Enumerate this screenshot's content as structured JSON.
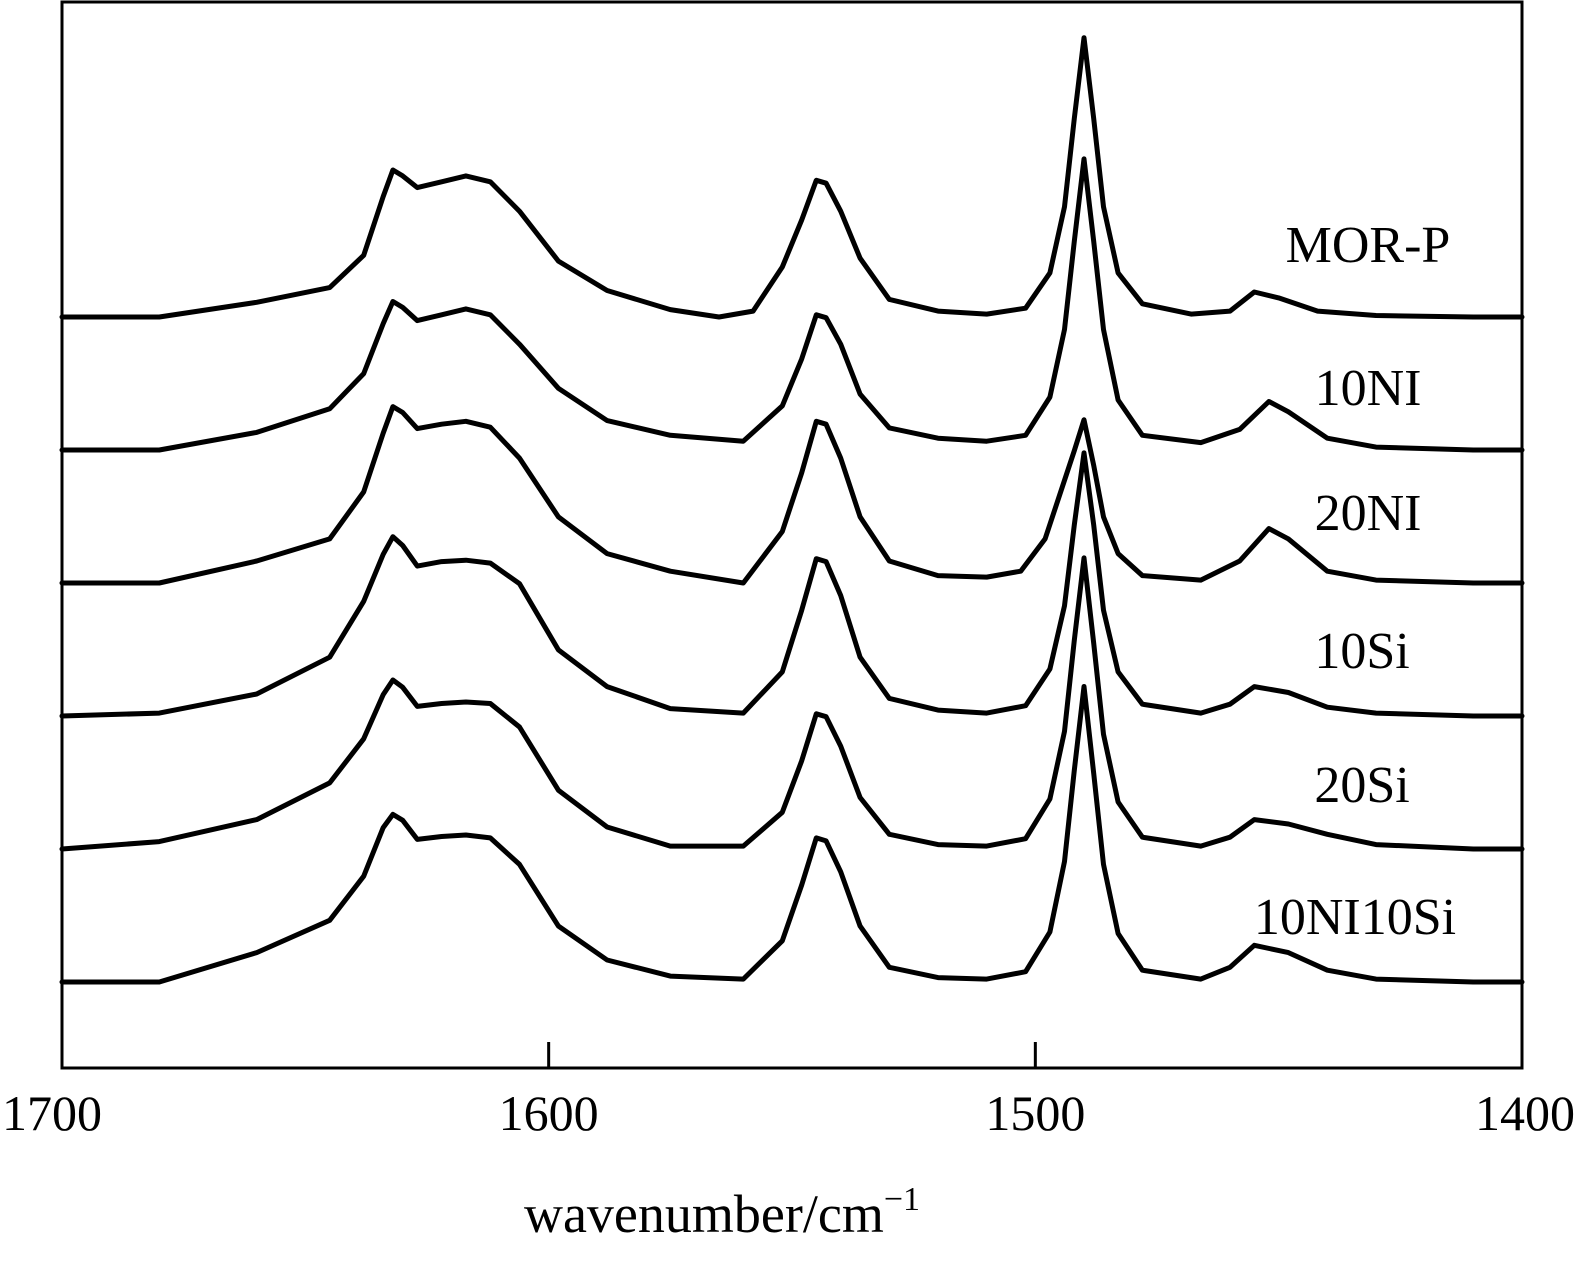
{
  "chart_data": {
    "type": "line",
    "xlabel": "wavenumber/cm",
    "xlabel_superscript": "−1",
    "xlim": [
      1700,
      1400
    ],
    "x_reversed": true,
    "xticks": [
      1700,
      1600,
      1500,
      1400
    ],
    "xtick_labels": [
      "1700",
      "1600",
      "1500",
      "1400"
    ],
    "grid": false,
    "legend": "labels above each trace on the right",
    "y_axis_labels": false,
    "series": [
      {
        "name": "MOR-P",
        "offset": 5,
        "peaks": {
          "1632": 1.0,
          "1617": 0.96,
          "1545": 0.93,
          "1490": 1.9,
          "1455": 0.17
        },
        "points": [
          [
            1700,
            0
          ],
          [
            1680,
            0
          ],
          [
            1660,
            0.1
          ],
          [
            1645,
            0.2
          ],
          [
            1638,
            0.42
          ],
          [
            1634,
            0.82
          ],
          [
            1632,
            1.0
          ],
          [
            1630,
            0.96
          ],
          [
            1627,
            0.88
          ],
          [
            1622,
            0.92
          ],
          [
            1617,
            0.96
          ],
          [
            1612,
            0.92
          ],
          [
            1606,
            0.72
          ],
          [
            1598,
            0.38
          ],
          [
            1588,
            0.18
          ],
          [
            1575,
            0.05
          ],
          [
            1565,
            0
          ],
          [
            1558,
            0.04
          ],
          [
            1552,
            0.34
          ],
          [
            1548,
            0.66
          ],
          [
            1545,
            0.93
          ],
          [
            1543,
            0.91
          ],
          [
            1540,
            0.72
          ],
          [
            1536,
            0.4
          ],
          [
            1530,
            0.12
          ],
          [
            1520,
            0.04
          ],
          [
            1510,
            0.02
          ],
          [
            1502,
            0.06
          ],
          [
            1497,
            0.3
          ],
          [
            1494,
            0.75
          ],
          [
            1492,
            1.35
          ],
          [
            1490,
            1.9
          ],
          [
            1488,
            1.35
          ],
          [
            1486,
            0.75
          ],
          [
            1483,
            0.3
          ],
          [
            1478,
            0.09
          ],
          [
            1468,
            0.02
          ],
          [
            1460,
            0.04
          ],
          [
            1455,
            0.17
          ],
          [
            1450,
            0.13
          ],
          [
            1442,
            0.04
          ],
          [
            1430,
            0.01
          ],
          [
            1410,
            0
          ],
          [
            1400,
            0
          ]
        ]
      },
      {
        "name": "10NI",
        "offset": 4,
        "peaks": {
          "1632": 1.01,
          "1617": 0.96,
          "1545": 0.92,
          "1490": 1.98,
          "1452": 0.33
        },
        "points": [
          [
            1700,
            0
          ],
          [
            1680,
            0
          ],
          [
            1660,
            0.12
          ],
          [
            1645,
            0.28
          ],
          [
            1638,
            0.52
          ],
          [
            1634,
            0.86
          ],
          [
            1632,
            1.01
          ],
          [
            1630,
            0.97
          ],
          [
            1627,
            0.88
          ],
          [
            1622,
            0.92
          ],
          [
            1617,
            0.96
          ],
          [
            1612,
            0.92
          ],
          [
            1606,
            0.72
          ],
          [
            1598,
            0.42
          ],
          [
            1588,
            0.2
          ],
          [
            1575,
            0.1
          ],
          [
            1560,
            0.06
          ],
          [
            1552,
            0.3
          ],
          [
            1548,
            0.62
          ],
          [
            1545,
            0.92
          ],
          [
            1543,
            0.9
          ],
          [
            1540,
            0.72
          ],
          [
            1536,
            0.38
          ],
          [
            1530,
            0.15
          ],
          [
            1520,
            0.08
          ],
          [
            1510,
            0.06
          ],
          [
            1502,
            0.1
          ],
          [
            1497,
            0.36
          ],
          [
            1494,
            0.82
          ],
          [
            1492,
            1.42
          ],
          [
            1490,
            1.98
          ],
          [
            1488,
            1.42
          ],
          [
            1486,
            0.82
          ],
          [
            1483,
            0.34
          ],
          [
            1478,
            0.1
          ],
          [
            1466,
            0.05
          ],
          [
            1458,
            0.14
          ],
          [
            1452,
            0.33
          ],
          [
            1448,
            0.26
          ],
          [
            1440,
            0.08
          ],
          [
            1430,
            0.02
          ],
          [
            1410,
            0
          ],
          [
            1400,
            0
          ]
        ]
      },
      {
        "name": "20NI",
        "offset": 3,
        "peaks": {
          "1632": 1.2,
          "1617": 1.1,
          "1545": 1.1,
          "1490": 1.11,
          "1452": 0.37
        },
        "points": [
          [
            1700,
            0
          ],
          [
            1680,
            0
          ],
          [
            1660,
            0.15
          ],
          [
            1645,
            0.3
          ],
          [
            1638,
            0.62
          ],
          [
            1634,
            1.02
          ],
          [
            1632,
            1.2
          ],
          [
            1630,
            1.16
          ],
          [
            1627,
            1.05
          ],
          [
            1622,
            1.08
          ],
          [
            1617,
            1.1
          ],
          [
            1612,
            1.06
          ],
          [
            1606,
            0.85
          ],
          [
            1598,
            0.45
          ],
          [
            1588,
            0.2
          ],
          [
            1575,
            0.08
          ],
          [
            1560,
            0
          ],
          [
            1552,
            0.35
          ],
          [
            1548,
            0.75
          ],
          [
            1545,
            1.1
          ],
          [
            1543,
            1.08
          ],
          [
            1540,
            0.85
          ],
          [
            1536,
            0.45
          ],
          [
            1530,
            0.15
          ],
          [
            1520,
            0.05
          ],
          [
            1510,
            0.04
          ],
          [
            1503,
            0.08
          ],
          [
            1498,
            0.3
          ],
          [
            1495,
            0.6
          ],
          [
            1492,
            0.9
          ],
          [
            1490,
            1.11
          ],
          [
            1488,
            0.8
          ],
          [
            1486,
            0.45
          ],
          [
            1483,
            0.2
          ],
          [
            1478,
            0.05
          ],
          [
            1466,
            0.02
          ],
          [
            1458,
            0.15
          ],
          [
            1452,
            0.37
          ],
          [
            1448,
            0.3
          ],
          [
            1440,
            0.08
          ],
          [
            1430,
            0.02
          ],
          [
            1410,
            0
          ],
          [
            1400,
            0
          ]
        ]
      },
      {
        "name": "10Si",
        "offset": 2,
        "peaks": {
          "1632": 1.22,
          "1617": 1.06,
          "1545": 1.07,
          "1490": 1.79,
          "1455": 0.2
        },
        "points": [
          [
            1700,
            0
          ],
          [
            1680,
            0.02
          ],
          [
            1660,
            0.15
          ],
          [
            1645,
            0.4
          ],
          [
            1638,
            0.78
          ],
          [
            1634,
            1.1
          ],
          [
            1632,
            1.22
          ],
          [
            1630,
            1.16
          ],
          [
            1627,
            1.02
          ],
          [
            1622,
            1.05
          ],
          [
            1617,
            1.06
          ],
          [
            1612,
            1.04
          ],
          [
            1606,
            0.9
          ],
          [
            1598,
            0.45
          ],
          [
            1588,
            0.2
          ],
          [
            1575,
            0.05
          ],
          [
            1560,
            0.02
          ],
          [
            1552,
            0.3
          ],
          [
            1548,
            0.72
          ],
          [
            1545,
            1.07
          ],
          [
            1543,
            1.05
          ],
          [
            1540,
            0.82
          ],
          [
            1536,
            0.4
          ],
          [
            1530,
            0.12
          ],
          [
            1520,
            0.04
          ],
          [
            1510,
            0.02
          ],
          [
            1502,
            0.07
          ],
          [
            1497,
            0.32
          ],
          [
            1494,
            0.75
          ],
          [
            1492,
            1.3
          ],
          [
            1490,
            1.79
          ],
          [
            1488,
            1.3
          ],
          [
            1486,
            0.72
          ],
          [
            1483,
            0.3
          ],
          [
            1478,
            0.08
          ],
          [
            1466,
            0.02
          ],
          [
            1460,
            0.08
          ],
          [
            1455,
            0.2
          ],
          [
            1448,
            0.16
          ],
          [
            1440,
            0.06
          ],
          [
            1430,
            0.02
          ],
          [
            1410,
            0
          ],
          [
            1400,
            0
          ]
        ]
      },
      {
        "name": "20Si",
        "offset": 1,
        "peaks": {
          "1632": 1.15,
          "1617": 1.0,
          "1545": 0.92,
          "1490": 1.98,
          "1455": 0.2
        },
        "points": [
          [
            1700,
            0
          ],
          [
            1680,
            0.05
          ],
          [
            1660,
            0.2
          ],
          [
            1645,
            0.45
          ],
          [
            1638,
            0.75
          ],
          [
            1634,
            1.05
          ],
          [
            1632,
            1.15
          ],
          [
            1630,
            1.1
          ],
          [
            1627,
            0.97
          ],
          [
            1622,
            0.99
          ],
          [
            1617,
            1.0
          ],
          [
            1612,
            0.99
          ],
          [
            1606,
            0.83
          ],
          [
            1598,
            0.4
          ],
          [
            1588,
            0.15
          ],
          [
            1575,
            0.02
          ],
          [
            1560,
            0.02
          ],
          [
            1552,
            0.25
          ],
          [
            1548,
            0.6
          ],
          [
            1545,
            0.92
          ],
          [
            1543,
            0.9
          ],
          [
            1540,
            0.7
          ],
          [
            1536,
            0.35
          ],
          [
            1530,
            0.1
          ],
          [
            1520,
            0.03
          ],
          [
            1510,
            0.02
          ],
          [
            1502,
            0.07
          ],
          [
            1497,
            0.34
          ],
          [
            1494,
            0.8
          ],
          [
            1492,
            1.42
          ],
          [
            1490,
            1.98
          ],
          [
            1488,
            1.4
          ],
          [
            1486,
            0.78
          ],
          [
            1483,
            0.32
          ],
          [
            1478,
            0.08
          ],
          [
            1466,
            0.02
          ],
          [
            1460,
            0.08
          ],
          [
            1455,
            0.2
          ],
          [
            1448,
            0.17
          ],
          [
            1440,
            0.1
          ],
          [
            1430,
            0.03
          ],
          [
            1410,
            0
          ],
          [
            1400,
            0
          ]
        ]
      },
      {
        "name": "10NI10Si",
        "offset": 0,
        "peaks": {
          "1632": 1.14,
          "1617": 1.0,
          "1545": 0.98,
          "1490": 2.01,
          "1455": 0.25
        },
        "points": [
          [
            1700,
            0
          ],
          [
            1680,
            0
          ],
          [
            1660,
            0.2
          ],
          [
            1645,
            0.42
          ],
          [
            1638,
            0.72
          ],
          [
            1634,
            1.05
          ],
          [
            1632,
            1.14
          ],
          [
            1630,
            1.1
          ],
          [
            1627,
            0.97
          ],
          [
            1622,
            0.99
          ],
          [
            1617,
            1.0
          ],
          [
            1612,
            0.98
          ],
          [
            1606,
            0.8
          ],
          [
            1598,
            0.38
          ],
          [
            1588,
            0.15
          ],
          [
            1575,
            0.04
          ],
          [
            1560,
            0.02
          ],
          [
            1552,
            0.28
          ],
          [
            1548,
            0.66
          ],
          [
            1545,
            0.98
          ],
          [
            1543,
            0.96
          ],
          [
            1540,
            0.75
          ],
          [
            1536,
            0.38
          ],
          [
            1530,
            0.1
          ],
          [
            1520,
            0.03
          ],
          [
            1510,
            0.02
          ],
          [
            1502,
            0.07
          ],
          [
            1497,
            0.34
          ],
          [
            1494,
            0.82
          ],
          [
            1492,
            1.44
          ],
          [
            1490,
            2.01
          ],
          [
            1488,
            1.42
          ],
          [
            1486,
            0.8
          ],
          [
            1483,
            0.33
          ],
          [
            1478,
            0.08
          ],
          [
            1466,
            0.02
          ],
          [
            1460,
            0.1
          ],
          [
            1455,
            0.25
          ],
          [
            1448,
            0.2
          ],
          [
            1440,
            0.08
          ],
          [
            1430,
            0.02
          ],
          [
            1410,
            0
          ],
          [
            1400,
            0
          ]
        ]
      }
    ]
  }
}
